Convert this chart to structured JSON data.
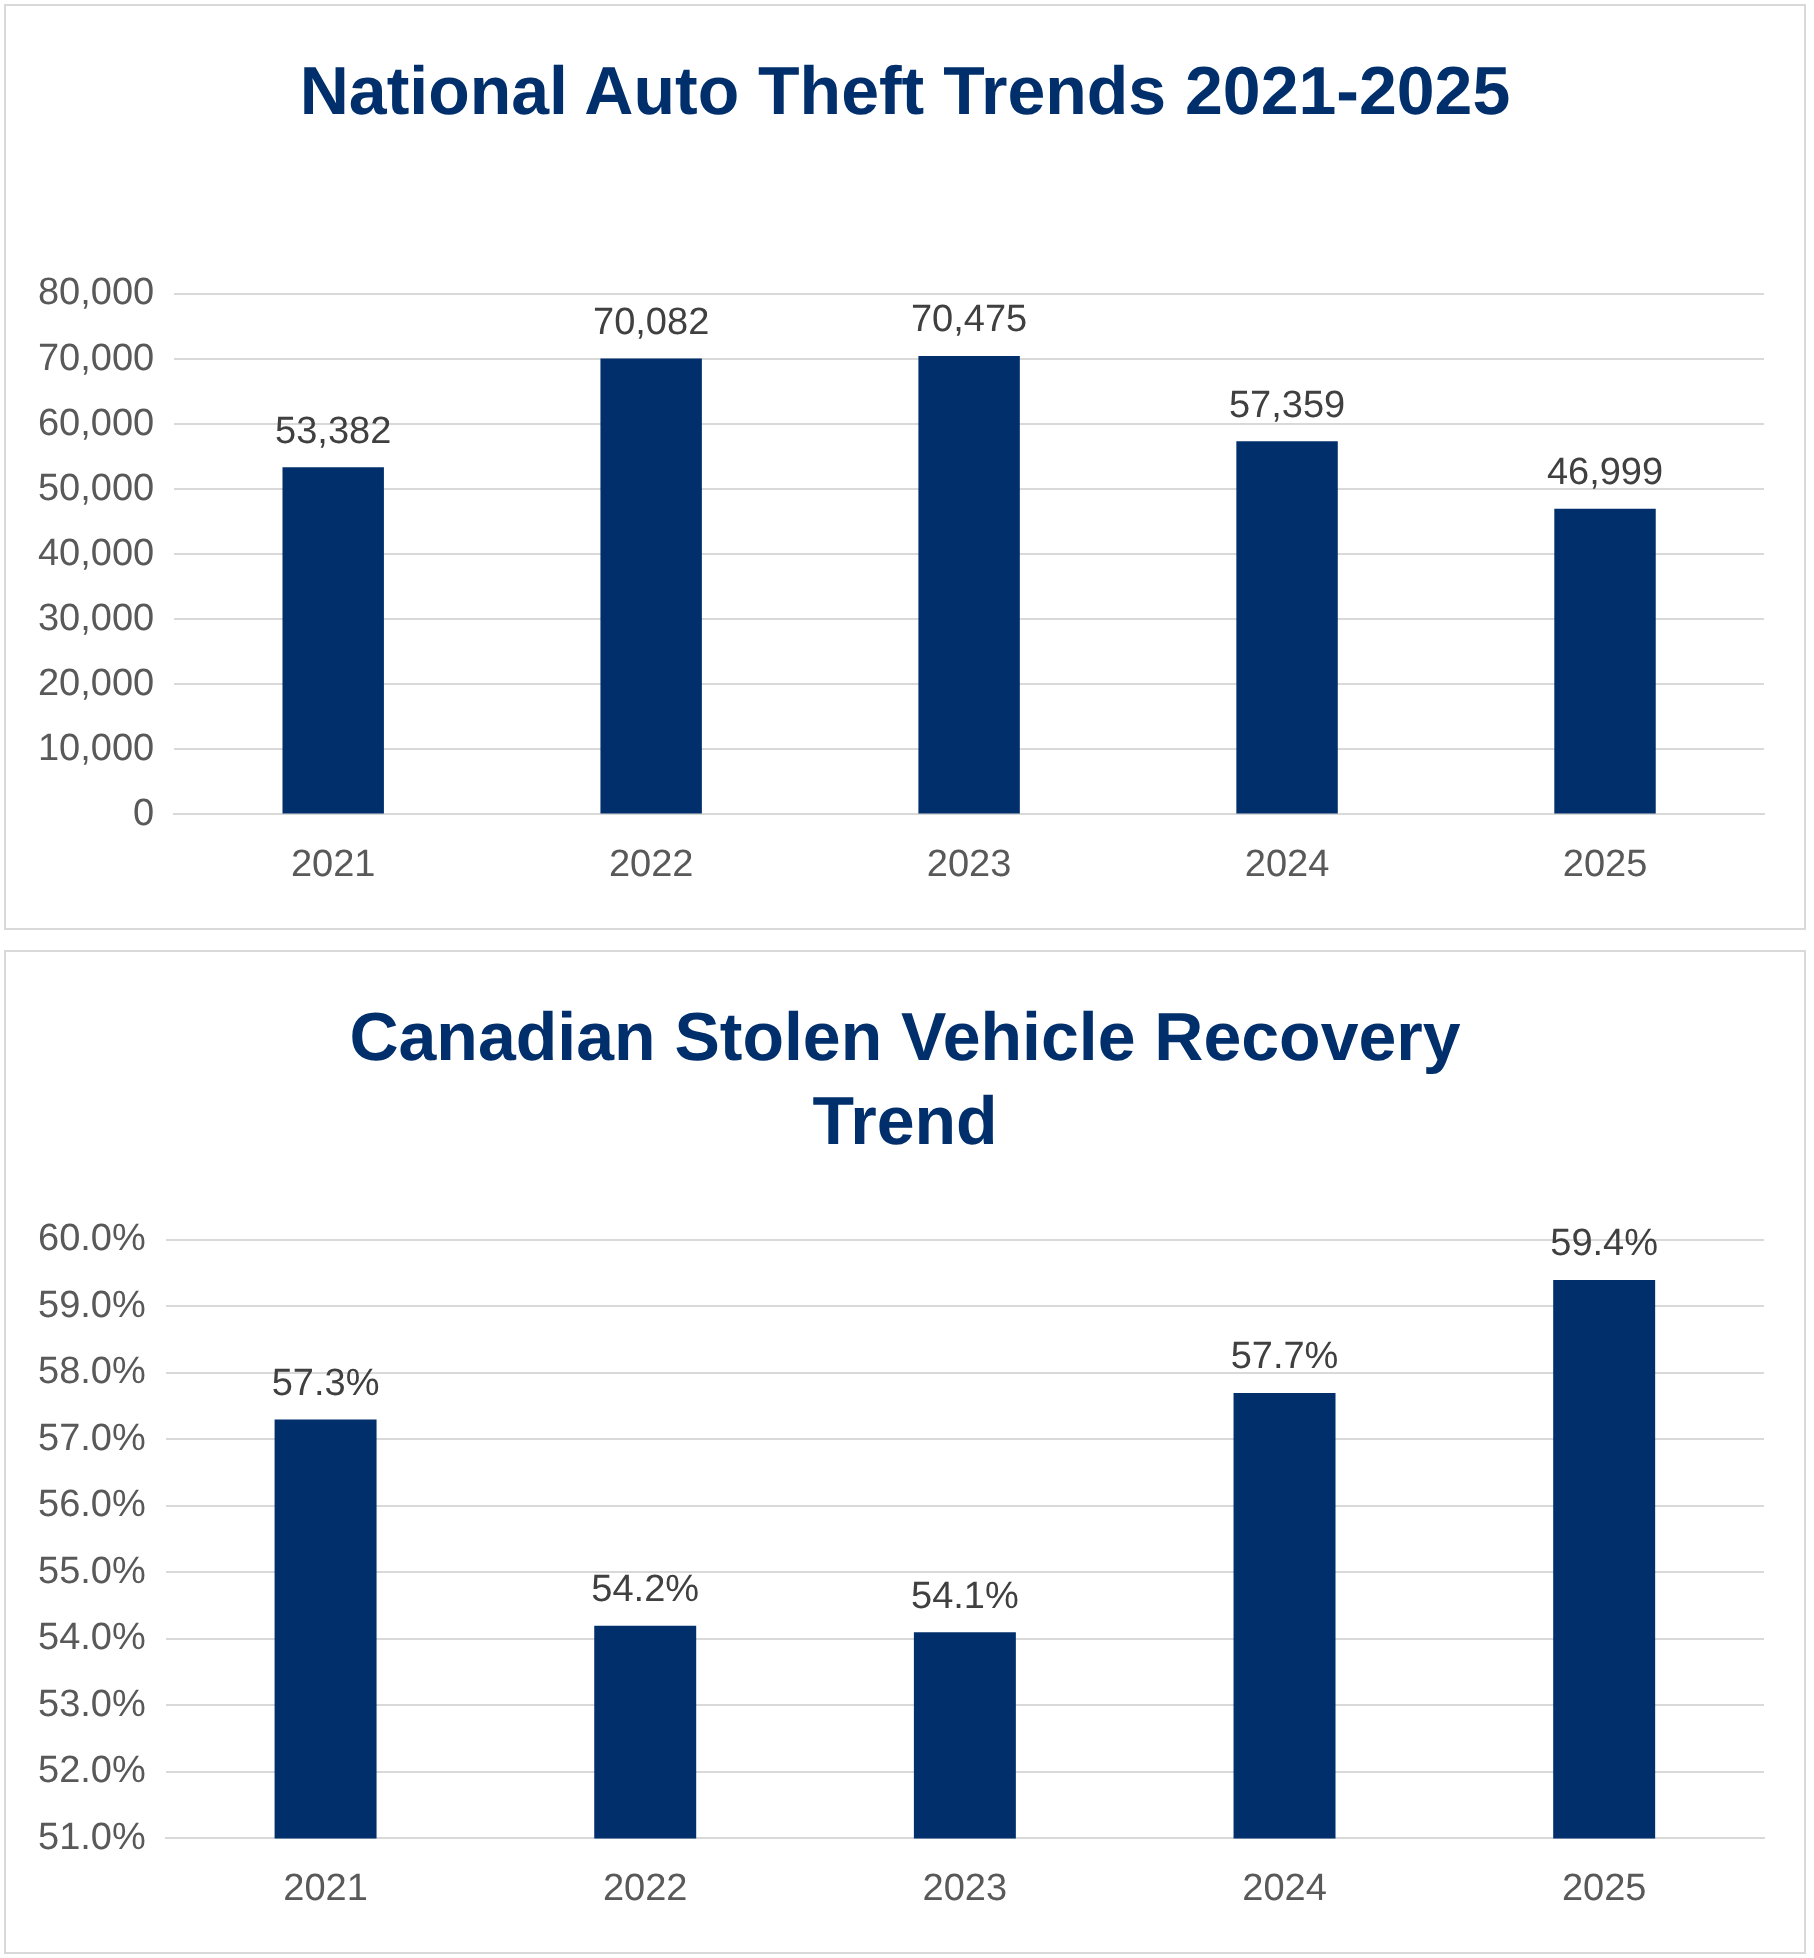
{
  "chart_data": [
    {
      "type": "bar",
      "title": "National Auto Theft Trends 2021-2025",
      "categories": [
        "2021",
        "2022",
        "2023",
        "2024",
        "2025"
      ],
      "values": [
        53382,
        70082,
        70475,
        57359,
        46999
      ],
      "value_labels": [
        "53,382",
        "70,082",
        "70,475",
        "57,359",
        "46,999"
      ],
      "color": "#002f6c",
      "ylim": [
        0,
        80000
      ],
      "yticks": [
        {
          "value": 0,
          "label": "0"
        },
        {
          "value": 10000,
          "label": "10,000"
        },
        {
          "value": 20000,
          "label": "20,000"
        },
        {
          "value": 30000,
          "label": "30,000"
        },
        {
          "value": 40000,
          "label": "40,000"
        },
        {
          "value": 50000,
          "label": "50,000"
        },
        {
          "value": 60000,
          "label": "60,000"
        },
        {
          "value": 70000,
          "label": "70,000"
        },
        {
          "value": 80000,
          "label": "80,000"
        }
      ],
      "grid": "y",
      "legend": false
    },
    {
      "type": "bar",
      "title": "Canadian Stolen Vehicle Recovery Trend",
      "categories": [
        "2021",
        "2022",
        "2023",
        "2024",
        "2025"
      ],
      "values": [
        57.3,
        54.2,
        54.1,
        57.7,
        59.4
      ],
      "value_labels": [
        "57.3%",
        "54.2%",
        "54.1%",
        "57.7%",
        "59.4%"
      ],
      "color": "#002f6c",
      "ylim": [
        51,
        60
      ],
      "yticks": [
        {
          "value": 51,
          "label": "51.0%"
        },
        {
          "value": 52,
          "label": "52.0%"
        },
        {
          "value": 53,
          "label": "53.0%"
        },
        {
          "value": 54,
          "label": "54.0%"
        },
        {
          "value": 55,
          "label": "55.0%"
        },
        {
          "value": 56,
          "label": "56.0%"
        },
        {
          "value": 57,
          "label": "57.0%"
        },
        {
          "value": 58,
          "label": "58.0%"
        },
        {
          "value": 59,
          "label": "59.0%"
        },
        {
          "value": 60,
          "label": "60.0%"
        }
      ],
      "grid": "y",
      "legend": false
    }
  ]
}
